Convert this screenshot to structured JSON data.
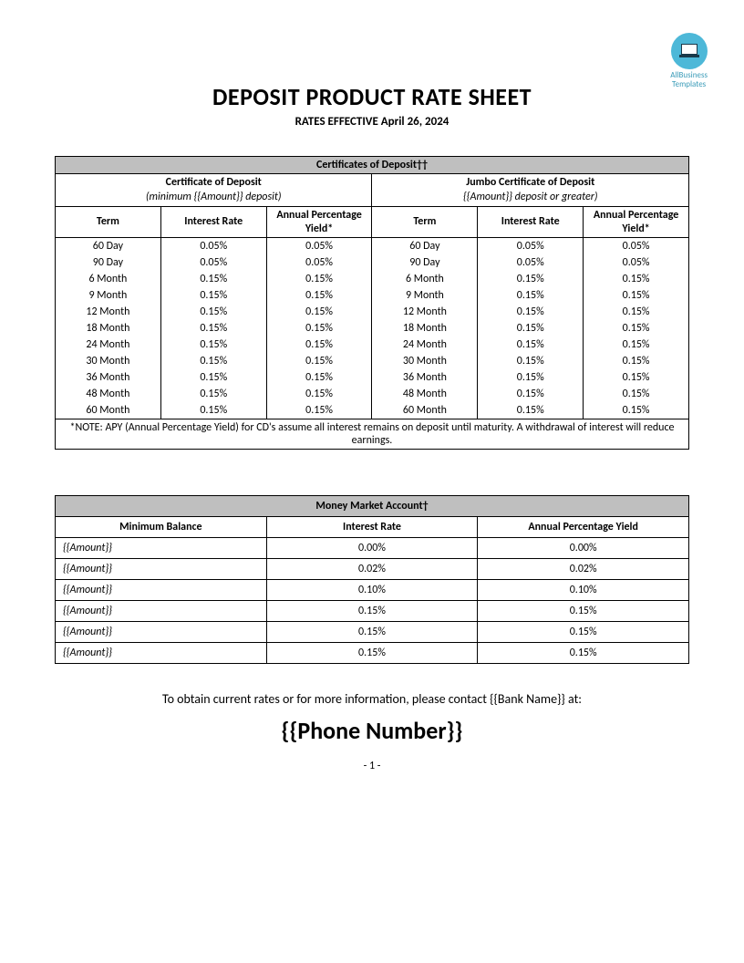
{
  "logo": {
    "line1": "AllBusiness",
    "line2": "Templates"
  },
  "header": {
    "title": "DEPOSIT PRODUCT RATE SHEET",
    "subtitle": "RATES EFFECTIVE April 26, 2024"
  },
  "cd": {
    "section_title": "Certificates of Deposit††",
    "left": {
      "name": "Certificate of Deposit",
      "note": "(minimum {{Amount}} deposit)"
    },
    "right": {
      "name": "Jumbo Certificate of Deposit",
      "note": "{{Amount}} deposit or greater)"
    },
    "columns": {
      "term": "Term",
      "rate": "Interest Rate",
      "apy": "Annual Percentage Yield*"
    },
    "rows": [
      {
        "term": "60 Day",
        "rate": "0.05%",
        "apy": "0.05%",
        "jterm": "60 Day",
        "jrate": "0.05%",
        "japy": "0.05%"
      },
      {
        "term": "90 Day",
        "rate": "0.05%",
        "apy": "0.05%",
        "jterm": "90 Day",
        "jrate": "0.05%",
        "japy": "0.05%"
      },
      {
        "term": "6 Month",
        "rate": "0.15%",
        "apy": "0.15%",
        "jterm": "6 Month",
        "jrate": "0.15%",
        "japy": "0.15%"
      },
      {
        "term": "9 Month",
        "rate": "0.15%",
        "apy": "0.15%",
        "jterm": "9 Month",
        "jrate": "0.15%",
        "japy": "0.15%"
      },
      {
        "term": "12 Month",
        "rate": "0.15%",
        "apy": "0.15%",
        "jterm": "12 Month",
        "jrate": "0.15%",
        "japy": "0.15%"
      },
      {
        "term": "18 Month",
        "rate": "0.15%",
        "apy": "0.15%",
        "jterm": "18 Month",
        "jrate": "0.15%",
        "japy": "0.15%"
      },
      {
        "term": "24 Month",
        "rate": "0.15%",
        "apy": "0.15%",
        "jterm": "24 Month",
        "jrate": "0.15%",
        "japy": "0.15%"
      },
      {
        "term": "30 Month",
        "rate": "0.15%",
        "apy": "0.15%",
        "jterm": "30 Month",
        "jrate": "0.15%",
        "japy": "0.15%"
      },
      {
        "term": "36 Month",
        "rate": "0.15%",
        "apy": "0.15%",
        "jterm": "36 Month",
        "jrate": "0.15%",
        "japy": "0.15%"
      },
      {
        "term": "48 Month",
        "rate": "0.15%",
        "apy": "0.15%",
        "jterm": "48 Month",
        "jrate": "0.15%",
        "japy": "0.15%"
      },
      {
        "term": "60 Month",
        "rate": "0.15%",
        "apy": "0.15%",
        "jterm": "60 Month",
        "jrate": "0.15%",
        "japy": "0.15%"
      }
    ],
    "footnote": "*NOTE: APY (Annual Percentage Yield) for CD's assume all interest remains on deposit until maturity.   A withdrawal of interest will reduce earnings."
  },
  "mm": {
    "section_title": "Money Market Account†",
    "columns": {
      "balance": "Minimum Balance",
      "rate": "Interest Rate",
      "apy": "Annual Percentage Yield"
    },
    "rows": [
      {
        "balance": "{{Amount}}",
        "rate": "0.00%",
        "apy": "0.00%"
      },
      {
        "balance": "{{Amount}}",
        "rate": "0.02%",
        "apy": "0.02%"
      },
      {
        "balance": "{{Amount}}",
        "rate": "0.10%",
        "apy": "0.10%"
      },
      {
        "balance": "{{Amount}}",
        "rate": "0.15%",
        "apy": "0.15%"
      },
      {
        "balance": "{{Amount}}",
        "rate": "0.15%",
        "apy": "0.15%"
      },
      {
        "balance": "{{Amount}}",
        "rate": "0.15%",
        "apy": "0.15%"
      }
    ]
  },
  "contact": {
    "line": "To obtain current rates or for more information, please contact {{Bank Name}} at:",
    "phone": "{{Phone Number}}"
  },
  "page": "- 1 -",
  "colors": {
    "header_bg": "#bfbfbf",
    "logo_bg": "#4db8d8"
  }
}
